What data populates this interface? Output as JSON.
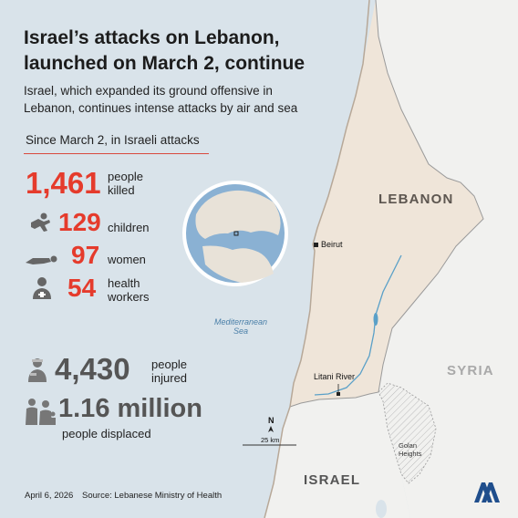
{
  "title_line1": "Israel’s attacks on Lebanon,",
  "title_line2": "launched on March 2, continue",
  "subtitle": "Israel, which expanded its ground offensive in Lebanon, continues intense attacks by air and sea",
  "stats_heading": "Since March 2, in Israeli attacks",
  "killed": {
    "value": "1,461",
    "label_line1": "people",
    "label_line2": "killed"
  },
  "children": {
    "value": "129",
    "label": "children"
  },
  "women": {
    "value": "97",
    "label": "women"
  },
  "health_workers": {
    "value": "54",
    "label_line1": "health",
    "label_line2": "workers"
  },
  "injured": {
    "value": "4,430",
    "label_line1": "people",
    "label_line2": "injured"
  },
  "displaced": {
    "value": "1.16 million",
    "label": "people displaced"
  },
  "map": {
    "sea_line1": "Mediterranean",
    "sea_line2": "Sea",
    "lebanon": "LEBANON",
    "syria": "SYRIA",
    "israel": "ISRAEL",
    "beirut": "Beirut",
    "litani": "Litani River",
    "golan_line1": "Golan",
    "golan_line2": "Heights",
    "north": "N",
    "scale": "25 km"
  },
  "footer": {
    "date": "April 6, 2026",
    "source": "Source: Lebanese Ministry of Health"
  },
  "colors": {
    "red": "#e53b2c",
    "sea": "#d9e3ea",
    "lebanon": "#efe5d9",
    "neighbor": "#f1f1ef",
    "aa_logo": "#1f4e8c"
  },
  "icons": [
    "child-figure-icon",
    "woman-figure-icon",
    "health-worker-icon",
    "injured-person-icon",
    "displaced-family-icon",
    "north-arrow-icon",
    "aa-logo-icon"
  ]
}
